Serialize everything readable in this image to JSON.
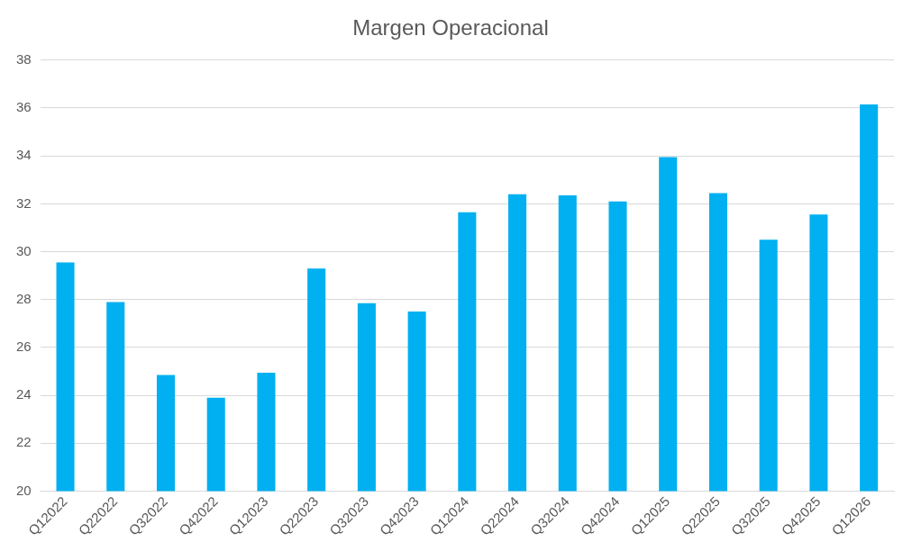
{
  "chart_data": {
    "type": "bar",
    "title": "Margen Operacional",
    "categories": [
      "Q12022",
      "Q22022",
      "Q32022",
      "Q42022",
      "Q12023",
      "Q22023",
      "Q32023",
      "Q42023",
      "Q12024",
      "Q22024",
      "Q32024",
      "Q42024",
      "Q12025",
      "Q22025",
      "Q32025",
      "Q42025",
      "Q12026"
    ],
    "values": [
      29.55,
      27.9,
      24.85,
      23.9,
      24.95,
      29.3,
      27.85,
      27.5,
      31.65,
      32.4,
      32.35,
      32.1,
      33.95,
      32.45,
      30.5,
      31.55,
      36.15
    ],
    "color": "#00b0f0",
    "ylim": [
      20,
      38
    ],
    "yticks": [
      20,
      22,
      24,
      26,
      28,
      30,
      32,
      34,
      36,
      38
    ],
    "grid": "y"
  }
}
